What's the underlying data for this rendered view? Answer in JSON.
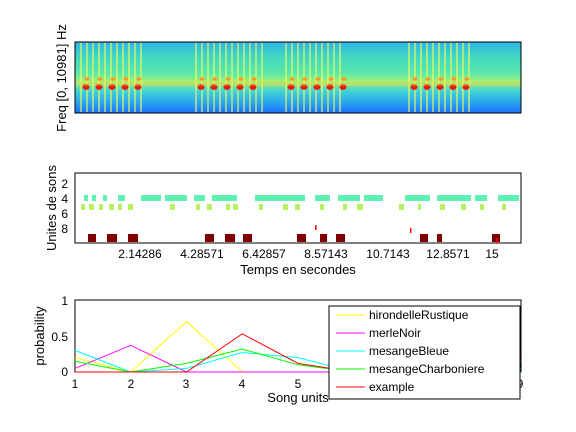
{
  "figure": {
    "spectrogram": {
      "ylabel": "Freq [0, 10981] Hz"
    },
    "units_plot": {
      "ylabel": "Unites de sons",
      "xlabel": "Temps en secondes",
      "yticks": [
        "2",
        "4",
        "6",
        "8"
      ],
      "xticks": [
        "2.14286",
        "4.28571",
        "6.42857",
        "8.57143",
        "10.7143",
        "12.8571",
        "15"
      ],
      "colors": {
        "unit4": "#5ff0b4",
        "unit5": "#b8f060",
        "unit9": "#800000",
        "red": "#ff0000"
      }
    },
    "probability_plot": {
      "ylabel": "probability",
      "xlabel": "Song units",
      "yticks": [
        "0",
        "0.5",
        "1"
      ],
      "xticks": [
        "1",
        "2",
        "3",
        "4",
        "5",
        "9"
      ]
    }
  },
  "chart_data": [
    {
      "type": "line",
      "ylabel": "probability",
      "xlabel": "Song units",
      "x": [
        1,
        2,
        3,
        4,
        5,
        6,
        7,
        8,
        9
      ],
      "xlim": [
        1,
        9
      ],
      "ylim": [
        0,
        1
      ],
      "legend_position": "top-right",
      "series": [
        {
          "name": "hirondelleRustique",
          "color": "#ffff00",
          "values": [
            0.2,
            0.0,
            0.7,
            0.0,
            0.0,
            0.0,
            0.0,
            0.0,
            0.0
          ]
        },
        {
          "name": "merleNoir",
          "color": "#ff00ff",
          "values": [
            0.05,
            0.37,
            0.0,
            0.0,
            0.0,
            0.0,
            0.0,
            0.0,
            0.15
          ]
        },
        {
          "name": "mesangeBleue",
          "color": "#00ffff",
          "values": [
            0.3,
            0.0,
            0.05,
            0.27,
            0.2,
            0.0,
            0.0,
            0.0,
            0.0
          ]
        },
        {
          "name": "mesangeCharboniere",
          "color": "#00ff00",
          "values": [
            0.15,
            0.0,
            0.12,
            0.32,
            0.1,
            0.0,
            0.0,
            0.0,
            0.05
          ]
        },
        {
          "name": "example",
          "color": "#ff0000",
          "values": [
            0.0,
            0.0,
            0.0,
            0.53,
            0.12,
            0.0,
            0.0,
            0.0,
            0.25
          ]
        }
      ]
    }
  ]
}
